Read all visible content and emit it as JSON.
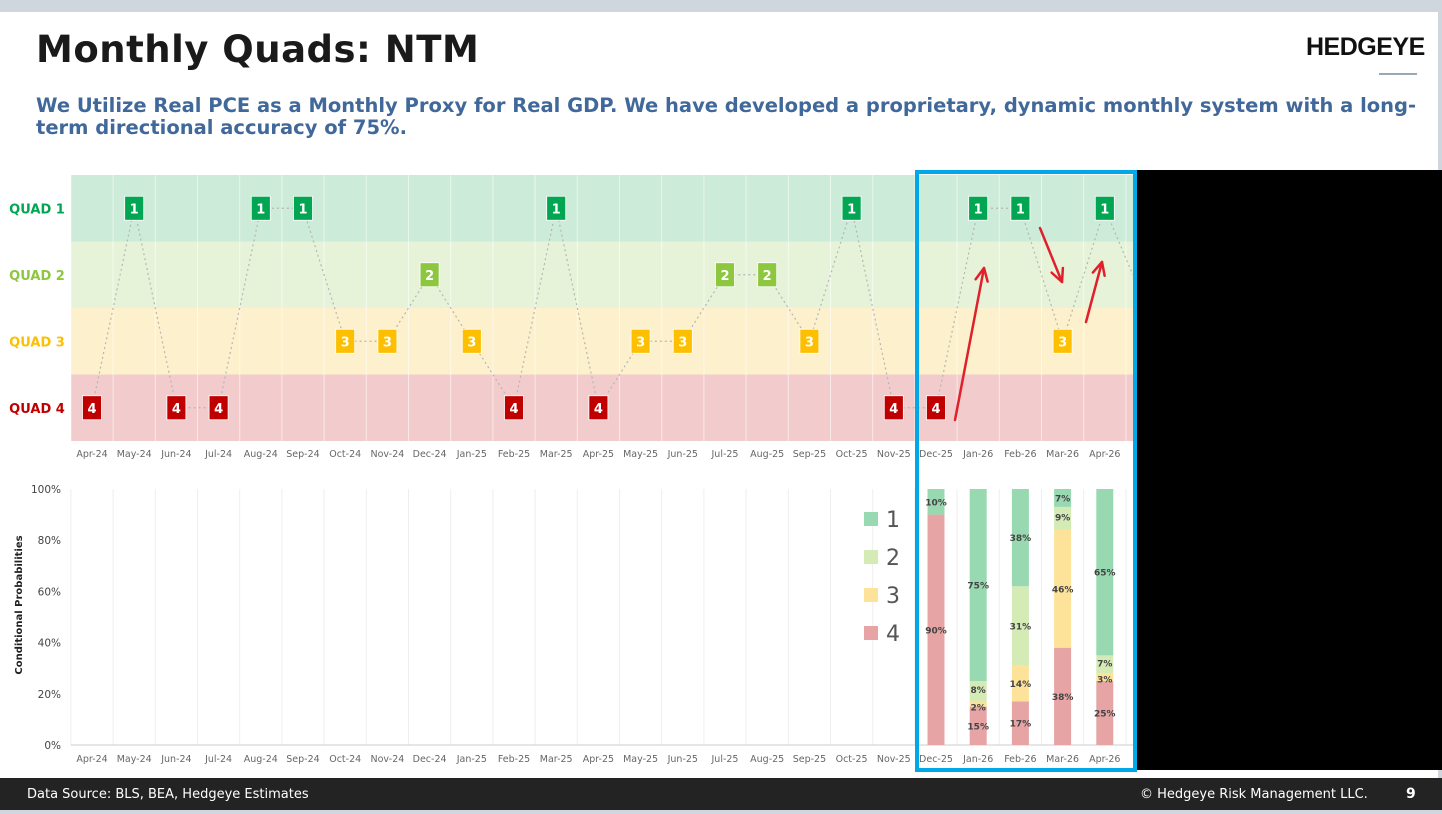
{
  "slide": {
    "title": "Monthly Quads: NTM",
    "logo": "HEDGEYE",
    "subtitle": "We Utilize Real PCE as a Monthly Proxy for Real GDP. We have developed a proprietary, dynamic monthly system with a long-term directional accuracy of 75%.",
    "footer_source": "Data Source: BLS, BEA, Hedgeye Estimates",
    "footer_copyright": "© Hedgeye Risk Management LLC.",
    "page_number": "9"
  },
  "colors": {
    "quad1": "#00a651",
    "quad2": "#8dc63f",
    "quad3": "#fdbf00",
    "quad4": "#c00000",
    "quad1_band": "#ccebd9",
    "quad2_band": "#e7f3d9",
    "quad3_band": "#fdf0cc",
    "quad4_band": "#f2cccc",
    "bar1": "#99d9b1",
    "bar2": "#d4ebb6",
    "bar3": "#fde399",
    "bar4": "#e6a4a4",
    "highlight_box": "#00a8e8",
    "arrow": "#e0202a"
  },
  "chart_data": [
    {
      "type": "line",
      "y_categories": [
        "QUAD 1",
        "QUAD 2",
        "QUAD 3",
        "QUAD 4"
      ],
      "categories": [
        "Apr-24",
        "May-24",
        "Jun-24",
        "Jul-24",
        "Aug-24",
        "Sep-24",
        "Oct-24",
        "Nov-24",
        "Dec-24",
        "Jan-25",
        "Feb-25",
        "Mar-25",
        "Apr-25",
        "May-25",
        "Jun-25",
        "Jul-25",
        "Aug-25",
        "Sep-25",
        "Oct-25",
        "Nov-25",
        "Dec-25",
        "Jan-26",
        "Feb-26",
        "Mar-26",
        "Apr-26"
      ],
      "values": [
        4,
        1,
        4,
        4,
        1,
        1,
        3,
        3,
        2,
        3,
        4,
        1,
        4,
        3,
        3,
        2,
        2,
        3,
        1,
        4,
        4,
        1,
        1,
        3,
        1
      ],
      "highlight_range": [
        "Dec-25",
        "Apr-26"
      ]
    },
    {
      "type": "bar",
      "stacked": true,
      "ylabel": "Conditional Probabilities",
      "yticks": [
        "0%",
        "20%",
        "40%",
        "60%",
        "80%",
        "100%"
      ],
      "categories": [
        "Apr-24",
        "May-24",
        "Jun-24",
        "Jul-24",
        "Aug-24",
        "Sep-24",
        "Oct-24",
        "Nov-24",
        "Dec-24",
        "Jan-25",
        "Feb-25",
        "Mar-25",
        "Apr-25",
        "May-25",
        "Jun-25",
        "Jul-25",
        "Aug-25",
        "Sep-25",
        "Oct-25",
        "Nov-25",
        "Dec-25",
        "Jan-26",
        "Feb-26",
        "Mar-26",
        "Apr-26"
      ],
      "series": [
        {
          "name": "1",
          "values": [
            null,
            null,
            null,
            null,
            null,
            null,
            null,
            null,
            null,
            null,
            null,
            null,
            null,
            null,
            null,
            null,
            null,
            null,
            null,
            null,
            10,
            75,
            38,
            7,
            65
          ],
          "labels": [
            "",
            "",
            "",
            "",
            "",
            "",
            "",
            "",
            "",
            "",
            "",
            "",
            "",
            "",
            "",
            "",
            "",
            "",
            "",
            "",
            "10%",
            "75%",
            "38%",
            "7%",
            "65%"
          ]
        },
        {
          "name": "2",
          "values": [
            null,
            null,
            null,
            null,
            null,
            null,
            null,
            null,
            null,
            null,
            null,
            null,
            null,
            null,
            null,
            null,
            null,
            null,
            null,
            null,
            0,
            8,
            31,
            9,
            7
          ],
          "labels": [
            "",
            "",
            "",
            "",
            "",
            "",
            "",
            "",
            "",
            "",
            "",
            "",
            "",
            "",
            "",
            "",
            "",
            "",
            "",
            "",
            "",
            "8%",
            "31%",
            "9%",
            "7%"
          ]
        },
        {
          "name": "3",
          "values": [
            null,
            null,
            null,
            null,
            null,
            null,
            null,
            null,
            null,
            null,
            null,
            null,
            null,
            null,
            null,
            null,
            null,
            null,
            null,
            null,
            0,
            2,
            14,
            46,
            3
          ],
          "labels": [
            "",
            "",
            "",
            "",
            "",
            "",
            "",
            "",
            "",
            "",
            "",
            "",
            "",
            "",
            "",
            "",
            "",
            "",
            "",
            "",
            "",
            "2%",
            "14%",
            "46%",
            "3%"
          ]
        },
        {
          "name": "4",
          "values": [
            null,
            null,
            null,
            null,
            null,
            null,
            null,
            null,
            null,
            null,
            null,
            null,
            null,
            null,
            null,
            null,
            null,
            null,
            null,
            null,
            90,
            15,
            17,
            38,
            25
          ],
          "labels": [
            "",
            "",
            "",
            "",
            "",
            "",
            "",
            "",
            "",
            "",
            "",
            "",
            "",
            "",
            "",
            "",
            "",
            "",
            "",
            "",
            "90%",
            "15%",
            "17%",
            "38%",
            "25%"
          ]
        }
      ],
      "legend": [
        "1",
        "2",
        "3",
        "4"
      ]
    }
  ]
}
